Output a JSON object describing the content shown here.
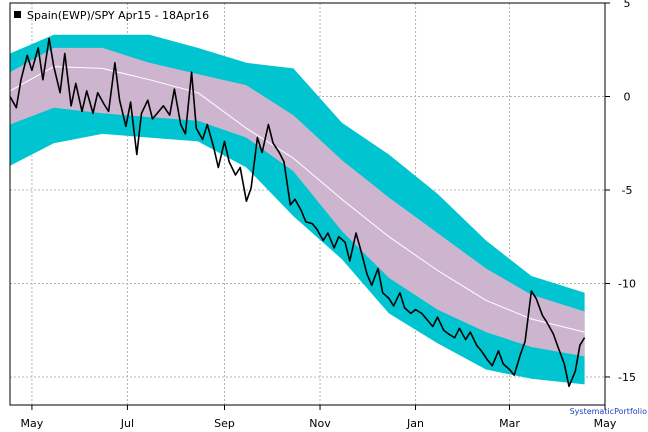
{
  "chart_data": {
    "type": "area",
    "title": "",
    "legend": {
      "label": "Spain(EWP)/SPY Apr15 - 18Apr16",
      "placement": "top-left"
    },
    "credit": "SystematicPortfolio",
    "x_ticks": [
      "May",
      "Jul",
      "Sep",
      "Nov",
      "Jan",
      "Mar",
      "May"
    ],
    "x_tick_dates": [
      "2015-05-01",
      "2015-07-01",
      "2015-09-01",
      "2015-11-01",
      "2016-01-01",
      "2016-03-01",
      "2016-05-01"
    ],
    "xlim": [
      "2015-04-17",
      "2016-05-01"
    ],
    "y_ticks": [
      5,
      0,
      -5,
      -10,
      -15
    ],
    "y_tick_labels": [
      "5",
      "0",
      "-5",
      "-10",
      "-15"
    ],
    "ylim": [
      -16.5,
      5
    ],
    "y_axis_side": "right",
    "grid": true,
    "colors": {
      "outer_band": "#00c5d0",
      "inner_band": "#cdb5cf",
      "center_line": "#ffffff",
      "series_line": "#000000",
      "grid": "#b4b4b4",
      "credit": "#1f3fbf"
    },
    "series": [
      {
        "name": "Spain(EWP)/SPY",
        "role": "price-ratio",
        "dates": [
          "2015-04-17",
          "2015-04-21",
          "2015-04-24",
          "2015-04-28",
          "2015-05-01",
          "2015-05-05",
          "2015-05-08",
          "2015-05-12",
          "2015-05-15",
          "2015-05-19",
          "2015-05-22",
          "2015-05-26",
          "2015-05-29",
          "2015-06-02",
          "2015-06-05",
          "2015-06-09",
          "2015-06-12",
          "2015-06-16",
          "2015-06-19",
          "2015-06-23",
          "2015-06-26",
          "2015-06-30",
          "2015-07-03",
          "2015-07-07",
          "2015-07-10",
          "2015-07-14",
          "2015-07-17",
          "2015-07-21",
          "2015-07-24",
          "2015-07-28",
          "2015-07-31",
          "2015-08-04",
          "2015-08-07",
          "2015-08-11",
          "2015-08-14",
          "2015-08-18",
          "2015-08-21",
          "2015-08-25",
          "2015-08-28",
          "2015-09-01",
          "2015-09-04",
          "2015-09-08",
          "2015-09-11",
          "2015-09-15",
          "2015-09-18",
          "2015-09-22",
          "2015-09-25",
          "2015-09-29",
          "2015-10-02",
          "2015-10-06",
          "2015-10-09",
          "2015-10-13",
          "2015-10-16",
          "2015-10-20",
          "2015-10-23",
          "2015-10-27",
          "2015-10-30",
          "2015-11-03",
          "2015-11-06",
          "2015-11-10",
          "2015-11-13",
          "2015-11-17",
          "2015-11-20",
          "2015-11-24",
          "2015-11-27",
          "2015-12-01",
          "2015-12-04",
          "2015-12-08",
          "2015-12-11",
          "2015-12-15",
          "2015-12-18",
          "2015-12-22",
          "2015-12-25",
          "2015-12-29",
          "2016-01-01",
          "2016-01-05",
          "2016-01-08",
          "2016-01-12",
          "2016-01-15",
          "2016-01-19",
          "2016-01-22",
          "2016-01-26",
          "2016-01-29",
          "2016-02-02",
          "2016-02-05",
          "2016-02-09",
          "2016-02-12",
          "2016-02-16",
          "2016-02-19",
          "2016-02-23",
          "2016-02-26",
          "2016-03-01",
          "2016-03-04",
          "2016-03-08",
          "2016-03-11",
          "2016-03-15",
          "2016-03-18",
          "2016-03-22",
          "2016-03-25",
          "2016-03-29",
          "2016-04-01",
          "2016-04-05",
          "2016-04-08",
          "2016-04-12",
          "2016-04-15",
          "2016-04-18"
        ],
        "values": [
          0.0,
          -0.6,
          0.9,
          2.2,
          1.4,
          2.6,
          0.9,
          3.1,
          1.6,
          0.2,
          2.3,
          -0.5,
          0.7,
          -0.8,
          0.3,
          -0.9,
          0.2,
          -0.4,
          -0.8,
          1.8,
          -0.2,
          -1.6,
          -0.3,
          -3.1,
          -0.9,
          -0.2,
          -1.2,
          -0.8,
          -0.5,
          -1.0,
          0.4,
          -1.5,
          -2.0,
          1.3,
          -1.7,
          -2.3,
          -1.5,
          -2.7,
          -3.8,
          -2.4,
          -3.5,
          -4.2,
          -3.8,
          -5.6,
          -4.9,
          -2.2,
          -3.0,
          -1.5,
          -2.5,
          -3.0,
          -3.5,
          -5.8,
          -5.5,
          -6.1,
          -6.7,
          -6.8,
          -7.1,
          -7.7,
          -7.3,
          -8.1,
          -7.5,
          -7.8,
          -8.8,
          -7.3,
          -8.2,
          -9.5,
          -10.1,
          -9.2,
          -10.5,
          -10.8,
          -11.2,
          -10.5,
          -11.3,
          -11.6,
          -11.4,
          -11.6,
          -11.9,
          -12.3,
          -11.8,
          -12.5,
          -12.7,
          -12.9,
          -12.4,
          -13.0,
          -12.6,
          -13.3,
          -13.6,
          -14.1,
          -14.4,
          -13.6,
          -14.3,
          -14.6,
          -14.9,
          -13.8,
          -13.1,
          -10.4,
          -10.8,
          -11.7,
          -12.1,
          -12.7,
          -13.4,
          -14.3,
          -15.5,
          -14.7,
          -13.3,
          -12.9
        ]
      },
      {
        "name": "",
        "role": "center-line",
        "dates": [
          "2015-04-17",
          "2015-05-15",
          "2015-06-15",
          "2015-07-15",
          "2015-08-15",
          "2015-09-15",
          "2015-10-15",
          "2015-11-15",
          "2015-12-15",
          "2016-01-15",
          "2016-02-15",
          "2016-03-15",
          "2016-04-18"
        ],
        "values": [
          0.3,
          1.6,
          1.5,
          0.9,
          0.2,
          -1.7,
          -3.3,
          -5.5,
          -7.5,
          -9.3,
          -10.9,
          -11.9,
          -12.6
        ]
      }
    ],
    "bands": [
      {
        "name": "",
        "role": "inner-band",
        "dates": [
          "2015-04-17",
          "2015-05-15",
          "2015-06-15",
          "2015-07-15",
          "2015-08-15",
          "2015-09-15",
          "2015-10-15",
          "2015-11-15",
          "2015-12-15",
          "2016-01-15",
          "2016-02-15",
          "2016-03-15",
          "2016-04-18"
        ],
        "upper": [
          1.3,
          2.6,
          2.6,
          1.8,
          1.2,
          0.6,
          -1.0,
          -3.4,
          -5.4,
          -7.3,
          -9.2,
          -10.6,
          -11.5
        ],
        "lower": [
          -1.5,
          -0.6,
          -0.9,
          -1.1,
          -1.3,
          -2.2,
          -4.0,
          -7.2,
          -9.7,
          -11.4,
          -12.6,
          -13.4,
          -13.9
        ]
      },
      {
        "name": "",
        "role": "outer-band",
        "dates": [
          "2015-04-17",
          "2015-05-15",
          "2015-06-15",
          "2015-07-15",
          "2015-08-15",
          "2015-09-15",
          "2015-10-15",
          "2015-11-15",
          "2015-12-15",
          "2016-01-15",
          "2016-02-15",
          "2016-03-15",
          "2016-04-18"
        ],
        "upper": [
          2.3,
          3.3,
          3.3,
          3.3,
          2.6,
          1.8,
          1.5,
          -1.4,
          -3.1,
          -5.2,
          -7.7,
          -9.6,
          -10.5
        ],
        "lower": [
          -3.7,
          -2.5,
          -2.0,
          -2.2,
          -2.4,
          -3.8,
          -6.4,
          -8.7,
          -11.6,
          -13.2,
          -14.6,
          -15.1,
          -15.4
        ]
      }
    ]
  }
}
